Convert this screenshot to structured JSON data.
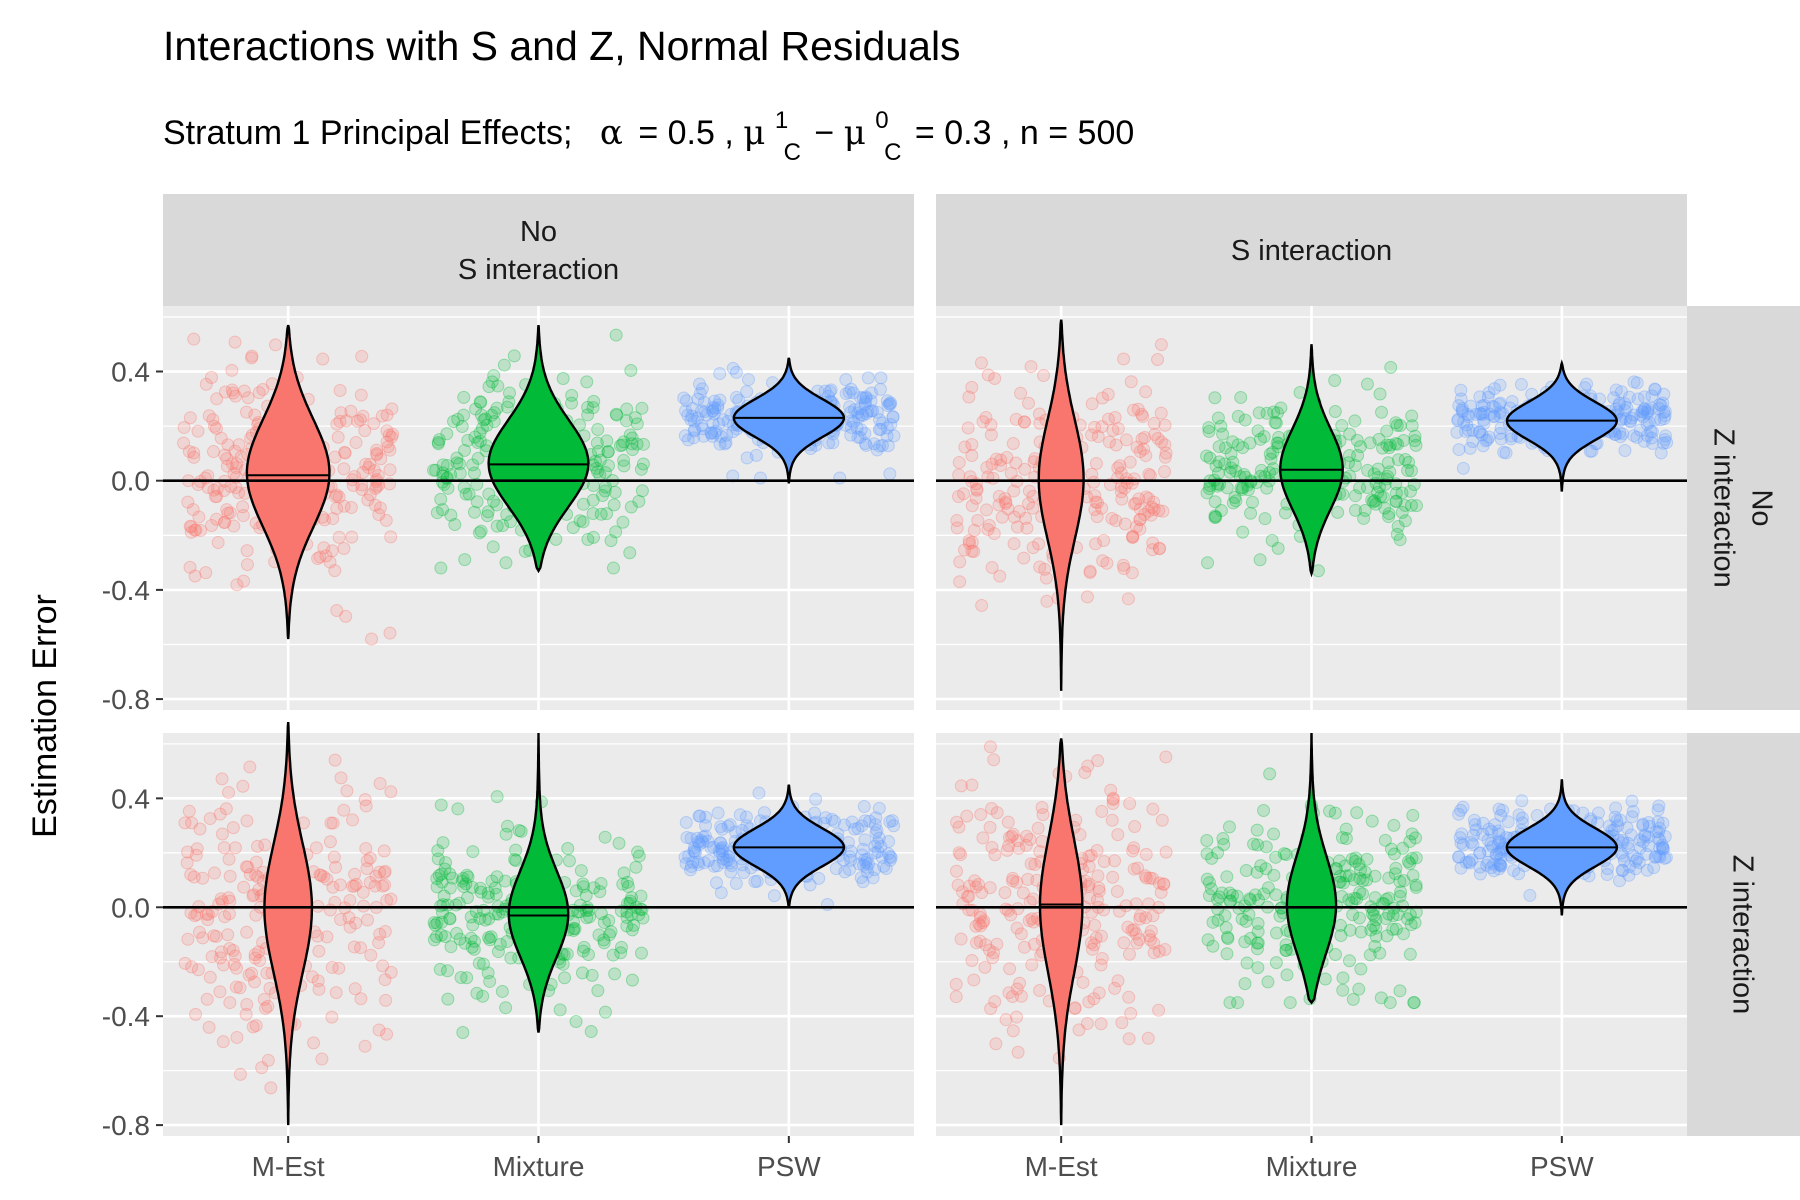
{
  "chart_data": {
    "type": "violin",
    "title": "Interactions with S and Z, Normal Residuals",
    "subtitle": {
      "prefix": "Stratum 1 Principal Effects;",
      "alpha_symbol": "α",
      "alpha_value": "0.5",
      "mu_symbol": "μ",
      "mu_sup_1": "1",
      "mu_sup_0": "0",
      "mu_sub": "C",
      "diff_value": "0.3",
      "n_symbol": "n",
      "n_value": "500"
    },
    "ylabel": "Estimation Error",
    "xlabel": "",
    "ylim": [
      -0.84,
      0.64
    ],
    "yticks": [
      -0.8,
      -0.4,
      0.0,
      0.4
    ],
    "ytick_labels": [
      "-0.8",
      "-0.4",
      "0.0",
      "0.4"
    ],
    "categories": [
      "M-Est",
      "Mixture",
      "PSW"
    ],
    "category_colors": [
      "#F8766D",
      "#00BA38",
      "#619CFF"
    ],
    "col_facets": [
      "No\nS interaction",
      "S interaction"
    ],
    "row_facets": [
      "No\nZ interaction",
      "Z interaction"
    ],
    "reference_line_y": 0.0,
    "panels": [
      {
        "row": 0,
        "col": 0,
        "series": [
          {
            "name": "M-Est",
            "min": -0.58,
            "max": 0.57,
            "median": 0.02,
            "peak": 0.03,
            "spread": 0.2,
            "maxw": 0.33,
            "pts_min": -0.58,
            "pts_max": 0.57
          },
          {
            "name": "Mixture",
            "min": -0.33,
            "max": 0.57,
            "median": 0.06,
            "peak": 0.06,
            "spread": 0.16,
            "maxw": 0.4,
            "pts_min": -0.32,
            "pts_max": 0.57
          },
          {
            "name": "PSW",
            "min": -0.01,
            "max": 0.45,
            "median": 0.23,
            "peak": 0.23,
            "spread": 0.07,
            "maxw": 0.44,
            "pts_min": 0.01,
            "pts_max": 0.45
          }
        ]
      },
      {
        "row": 0,
        "col": 1,
        "series": [
          {
            "name": "M-Est",
            "min": -0.77,
            "max": 0.59,
            "median": 0.0,
            "peak": 0.01,
            "spread": 0.22,
            "maxw": 0.18,
            "pts_min": -0.76,
            "pts_max": 0.59
          },
          {
            "name": "Mixture",
            "min": -0.34,
            "max": 0.5,
            "median": 0.04,
            "peak": 0.04,
            "spread": 0.15,
            "maxw": 0.25,
            "pts_min": -0.33,
            "pts_max": 0.5
          },
          {
            "name": "PSW",
            "min": -0.04,
            "max": 0.43,
            "median": 0.22,
            "peak": 0.22,
            "spread": 0.07,
            "maxw": 0.44,
            "pts_min": -0.03,
            "pts_max": 0.43
          }
        ]
      },
      {
        "row": 1,
        "col": 0,
        "series": [
          {
            "name": "M-Est",
            "min": -0.8,
            "max": 0.68,
            "median": 0.0,
            "peak": 0.0,
            "spread": 0.24,
            "maxw": 0.19,
            "pts_min": -0.8,
            "pts_max": 0.64
          },
          {
            "name": "Mixture",
            "min": -0.46,
            "max": 0.64,
            "median": -0.03,
            "peak": -0.03,
            "spread": 0.16,
            "maxw": 0.24,
            "pts_min": -0.46,
            "pts_max": 0.64
          },
          {
            "name": "PSW",
            "min": 0.0,
            "max": 0.45,
            "median": 0.22,
            "peak": 0.22,
            "spread": 0.07,
            "maxw": 0.44,
            "pts_min": 0.01,
            "pts_max": 0.45
          }
        ]
      },
      {
        "row": 1,
        "col": 1,
        "series": [
          {
            "name": "M-Est",
            "min": -0.8,
            "max": 0.62,
            "median": 0.01,
            "peak": 0.01,
            "spread": 0.25,
            "maxw": 0.17,
            "pts_min": -0.8,
            "pts_max": 0.62
          },
          {
            "name": "Mixture",
            "min": -0.35,
            "max": 0.64,
            "median": 0.0,
            "peak": 0.0,
            "spread": 0.18,
            "maxw": 0.2,
            "pts_min": -0.35,
            "pts_max": 0.63
          },
          {
            "name": "PSW",
            "min": -0.03,
            "max": 0.47,
            "median": 0.22,
            "peak": 0.22,
            "spread": 0.07,
            "maxw": 0.44,
            "pts_min": -0.02,
            "pts_max": 0.47
          }
        ]
      }
    ],
    "grid": true,
    "legend": "none"
  }
}
